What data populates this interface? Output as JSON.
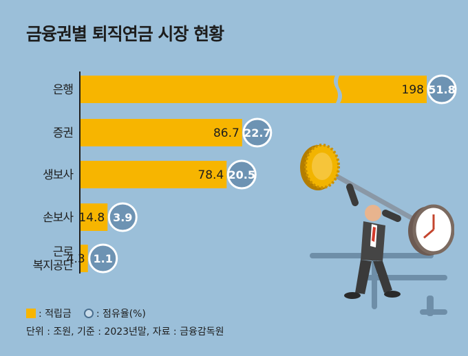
{
  "title": "금융권별 퇴직연금 시장 현황",
  "chart_data": {
    "type": "bar",
    "orientation": "horizontal",
    "categories": [
      "은행",
      "증권",
      "생보사",
      "손보사",
      "근로\n복지공단"
    ],
    "series": [
      {
        "name": "적립금",
        "values": [
          198,
          86.7,
          78.4,
          14.8,
          4.3
        ]
      },
      {
        "name": "점유율(%)",
        "values": [
          51.8,
          22.7,
          20.5,
          3.9,
          1.1
        ]
      }
    ],
    "axis_break": true,
    "colors": {
      "bar": "#f7b500",
      "share_circle": "#6d93b3",
      "share_ring": "#ffffff"
    }
  },
  "legend": {
    "bar_label": ": 적립금",
    "circle_label": ": 점유율(%)"
  },
  "note": "단위 : 조원, 기준 : 2023년말, 자료 : 금융감독원"
}
